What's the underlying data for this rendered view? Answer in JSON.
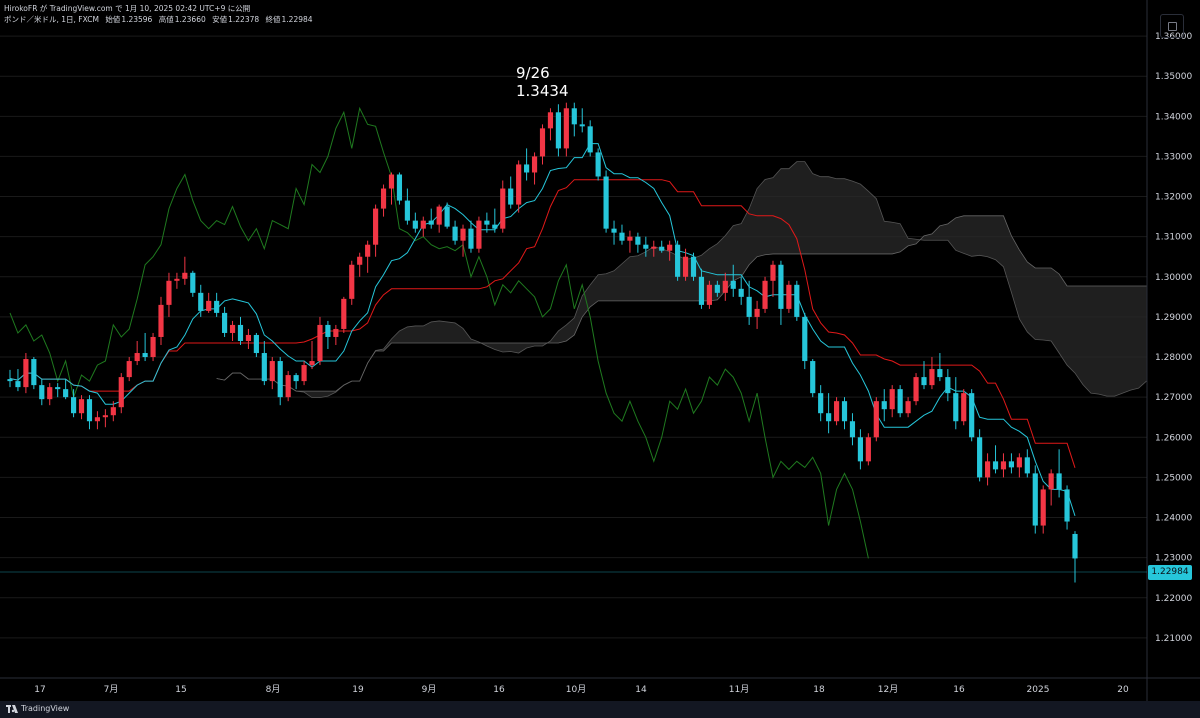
{
  "header": {
    "author": "HirokoFR が TradingView.com で 1月 10, 2025 02:42 UTC+9 に公開",
    "symbol": "ポンド／米ドル, 1日, FXCM",
    "open_label": "始値",
    "open": "1.23596",
    "high_label": "高値",
    "high": "1.23660",
    "low_label": "安値",
    "low": "1.22378",
    "close_label": "終値",
    "close": "1.22984"
  },
  "annotation": {
    "date": "9/26",
    "price": "1.3434"
  },
  "footer": {
    "brand": "TradingView"
  },
  "colors": {
    "background": "#000000",
    "up": "#f23645",
    "down": "#26c6da",
    "conversion_line": "#26c6da",
    "base_line": "#e01919",
    "lagging_span": "#1f7a1f",
    "cloud": "#2a2a2a",
    "last_price": "#26c6da"
  },
  "chart_data": {
    "type": "candlestick",
    "instrument": "ポンド／米ドル",
    "timeframe": "1日",
    "ylim": [
      1.2,
      1.366
    ],
    "y_ticks": [
      "1.36000",
      "1.35000",
      "1.34000",
      "1.33000",
      "1.32000",
      "1.31000",
      "1.30000",
      "1.29000",
      "1.28000",
      "1.27000",
      "1.26000",
      "1.25000",
      "1.24000",
      "1.23000",
      "1.22000",
      "1.21000"
    ],
    "x_ticks": [
      "17",
      "7月",
      "15",
      "8月",
      "19",
      "9月",
      "16",
      "10月",
      "14",
      "11月",
      "18",
      "12月",
      "16",
      "2025",
      "20"
    ],
    "last_price": "1.22984",
    "candles": [
      [
        1.2745,
        1.2768,
        1.2725,
        1.274
      ],
      [
        1.274,
        1.277,
        1.2715,
        1.2725
      ],
      [
        1.2725,
        1.281,
        1.271,
        1.2795
      ],
      [
        1.2795,
        1.28,
        1.272,
        1.273
      ],
      [
        1.273,
        1.2745,
        1.268,
        1.2695
      ],
      [
        1.2695,
        1.2735,
        1.268,
        1.2725
      ],
      [
        1.2725,
        1.2735,
        1.27,
        1.272
      ],
      [
        1.272,
        1.2745,
        1.2695,
        1.27
      ],
      [
        1.27,
        1.272,
        1.265,
        1.266
      ],
      [
        1.266,
        1.2705,
        1.2645,
        1.2695
      ],
      [
        1.2695,
        1.2705,
        1.262,
        1.264
      ],
      [
        1.264,
        1.2665,
        1.262,
        1.265
      ],
      [
        1.265,
        1.267,
        1.2625,
        1.2655
      ],
      [
        1.2655,
        1.269,
        1.264,
        1.2675
      ],
      [
        1.2675,
        1.276,
        1.266,
        1.275
      ],
      [
        1.275,
        1.28,
        1.274,
        1.279
      ],
      [
        1.279,
        1.284,
        1.278,
        1.281
      ],
      [
        1.281,
        1.286,
        1.279,
        1.28
      ],
      [
        1.28,
        1.286,
        1.279,
        1.285
      ],
      [
        1.285,
        1.295,
        1.283,
        1.293
      ],
      [
        1.293,
        1.301,
        1.29,
        1.299
      ],
      [
        1.299,
        1.301,
        1.297,
        1.2995
      ],
      [
        1.2995,
        1.305,
        1.298,
        1.301
      ],
      [
        1.301,
        1.3015,
        1.295,
        1.296
      ],
      [
        1.296,
        1.298,
        1.29,
        1.2915
      ],
      [
        1.2915,
        1.296,
        1.291,
        1.294
      ],
      [
        1.294,
        1.296,
        1.29,
        1.291
      ],
      [
        1.291,
        1.2925,
        1.285,
        1.286
      ],
      [
        1.286,
        1.289,
        1.284,
        1.288
      ],
      [
        1.288,
        1.29,
        1.283,
        1.284
      ],
      [
        1.284,
        1.287,
        1.282,
        1.2855
      ],
      [
        1.2855,
        1.286,
        1.28,
        1.281
      ],
      [
        1.281,
        1.284,
        1.273,
        1.274
      ],
      [
        1.274,
        1.28,
        1.272,
        1.279
      ],
      [
        1.279,
        1.28,
        1.268,
        1.27
      ],
      [
        1.27,
        1.2765,
        1.269,
        1.2755
      ],
      [
        1.2755,
        1.276,
        1.272,
        1.274
      ],
      [
        1.274,
        1.279,
        1.273,
        1.278
      ],
      [
        1.278,
        1.284,
        1.277,
        1.279
      ],
      [
        1.279,
        1.29,
        1.278,
        1.288
      ],
      [
        1.288,
        1.289,
        1.282,
        1.285
      ],
      [
        1.285,
        1.288,
        1.283,
        1.287
      ],
      [
        1.287,
        1.295,
        1.286,
        1.2945
      ],
      [
        1.2945,
        1.304,
        1.293,
        1.303
      ],
      [
        1.303,
        1.306,
        1.3,
        1.305
      ],
      [
        1.305,
        1.309,
        1.301,
        1.308
      ],
      [
        1.308,
        1.318,
        1.305,
        1.317
      ],
      [
        1.317,
        1.323,
        1.315,
        1.322
      ],
      [
        1.322,
        1.326,
        1.318,
        1.3255
      ],
      [
        1.3255,
        1.326,
        1.318,
        1.319
      ],
      [
        1.319,
        1.322,
        1.313,
        1.314
      ],
      [
        1.314,
        1.316,
        1.311,
        1.312
      ],
      [
        1.312,
        1.315,
        1.31,
        1.314
      ],
      [
        1.314,
        1.317,
        1.312,
        1.313
      ],
      [
        1.313,
        1.318,
        1.311,
        1.3175
      ],
      [
        1.3175,
        1.3185,
        1.312,
        1.3125
      ],
      [
        1.3125,
        1.314,
        1.308,
        1.309
      ],
      [
        1.309,
        1.313,
        1.305,
        1.312
      ],
      [
        1.312,
        1.314,
        1.306,
        1.307
      ],
      [
        1.307,
        1.315,
        1.306,
        1.314
      ],
      [
        1.314,
        1.316,
        1.311,
        1.313
      ],
      [
        1.313,
        1.317,
        1.311,
        1.312
      ],
      [
        1.312,
        1.324,
        1.311,
        1.322
      ],
      [
        1.322,
        1.325,
        1.317,
        1.318
      ],
      [
        1.318,
        1.329,
        1.316,
        1.328
      ],
      [
        1.328,
        1.332,
        1.324,
        1.326
      ],
      [
        1.326,
        1.331,
        1.323,
        1.33
      ],
      [
        1.33,
        1.338,
        1.328,
        1.337
      ],
      [
        1.337,
        1.342,
        1.334,
        1.341
      ],
      [
        1.341,
        1.343,
        1.33,
        1.332
      ],
      [
        1.332,
        1.3434,
        1.33,
        1.342
      ],
      [
        1.342,
        1.3434,
        1.335,
        1.338
      ],
      [
        1.338,
        1.342,
        1.336,
        1.3375
      ],
      [
        1.3375,
        1.339,
        1.33,
        1.331
      ],
      [
        1.331,
        1.332,
        1.324,
        1.325
      ],
      [
        1.325,
        1.3265,
        1.311,
        1.312
      ],
      [
        1.312,
        1.314,
        1.308,
        1.311
      ],
      [
        1.311,
        1.313,
        1.308,
        1.309
      ],
      [
        1.309,
        1.3115,
        1.306,
        1.31
      ],
      [
        1.31,
        1.311,
        1.306,
        1.308
      ],
      [
        1.308,
        1.31,
        1.305,
        1.307
      ],
      [
        1.307,
        1.309,
        1.305,
        1.3075
      ],
      [
        1.3075,
        1.309,
        1.306,
        1.3065
      ],
      [
        1.3065,
        1.309,
        1.304,
        1.308
      ],
      [
        1.308,
        1.309,
        1.299,
        1.3
      ],
      [
        1.3,
        1.307,
        1.299,
        1.305
      ],
      [
        1.305,
        1.306,
        1.299,
        1.3
      ],
      [
        1.3,
        1.302,
        1.292,
        1.293
      ],
      [
        1.293,
        1.299,
        1.292,
        1.298
      ],
      [
        1.298,
        1.299,
        1.295,
        1.296
      ],
      [
        1.296,
        1.301,
        1.294,
        1.299
      ],
      [
        1.299,
        1.303,
        1.295,
        1.297
      ],
      [
        1.297,
        1.3,
        1.293,
        1.295
      ],
      [
        1.295,
        1.299,
        1.288,
        1.29
      ],
      [
        1.29,
        1.294,
        1.287,
        1.292
      ],
      [
        1.292,
        1.3,
        1.291,
        1.299
      ],
      [
        1.299,
        1.304,
        1.295,
        1.303
      ],
      [
        1.303,
        1.304,
        1.288,
        1.292
      ],
      [
        1.292,
        1.299,
        1.291,
        1.298
      ],
      [
        1.298,
        1.299,
        1.289,
        1.29
      ],
      [
        1.29,
        1.291,
        1.277,
        1.279
      ],
      [
        1.279,
        1.2795,
        1.27,
        1.271
      ],
      [
        1.271,
        1.273,
        1.264,
        1.266
      ],
      [
        1.266,
        1.271,
        1.261,
        1.264
      ],
      [
        1.264,
        1.27,
        1.263,
        1.269
      ],
      [
        1.269,
        1.27,
        1.262,
        1.264
      ],
      [
        1.264,
        1.266,
        1.258,
        1.26
      ],
      [
        1.26,
        1.262,
        1.252,
        1.254
      ],
      [
        1.254,
        1.261,
        1.253,
        1.26
      ],
      [
        1.26,
        1.27,
        1.259,
        1.269
      ],
      [
        1.269,
        1.272,
        1.264,
        1.267
      ],
      [
        1.267,
        1.273,
        1.265,
        1.272
      ],
      [
        1.272,
        1.273,
        1.265,
        1.266
      ],
      [
        1.266,
        1.27,
        1.265,
        1.269
      ],
      [
        1.269,
        1.276,
        1.268,
        1.275
      ],
      [
        1.275,
        1.279,
        1.272,
        1.273
      ],
      [
        1.273,
        1.28,
        1.272,
        1.277
      ],
      [
        1.277,
        1.281,
        1.274,
        1.275
      ],
      [
        1.275,
        1.277,
        1.269,
        1.271
      ],
      [
        1.271,
        1.275,
        1.262,
        1.264
      ],
      [
        1.264,
        1.272,
        1.263,
        1.271
      ],
      [
        1.271,
        1.272,
        1.259,
        1.26
      ],
      [
        1.26,
        1.262,
        1.249,
        1.25
      ],
      [
        1.25,
        1.256,
        1.248,
        1.254
      ],
      [
        1.254,
        1.258,
        1.251,
        1.252
      ],
      [
        1.252,
        1.256,
        1.25,
        1.254
      ],
      [
        1.254,
        1.256,
        1.251,
        1.2525
      ],
      [
        1.2525,
        1.256,
        1.25,
        1.255
      ],
      [
        1.255,
        1.257,
        1.25,
        1.251
      ],
      [
        1.251,
        1.253,
        1.236,
        1.238
      ],
      [
        1.238,
        1.248,
        1.236,
        1.247
      ],
      [
        1.247,
        1.252,
        1.243,
        1.251
      ],
      [
        1.251,
        1.257,
        1.245,
        1.247
      ],
      [
        1.247,
        1.248,
        1.237,
        1.239
      ],
      [
        1.2359,
        1.2366,
        1.2238,
        1.2298
      ]
    ]
  }
}
